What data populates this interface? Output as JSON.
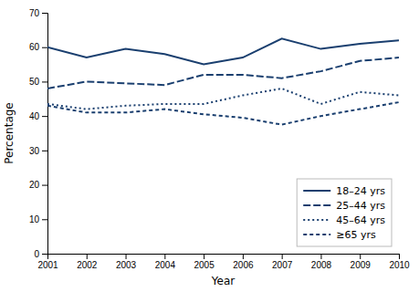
{
  "chart_data": {
    "type": "line",
    "x": [
      2001,
      2002,
      2003,
      2004,
      2005,
      2006,
      2007,
      2008,
      2009,
      2010
    ],
    "xlabel": "Year",
    "ylabel": "Percentage",
    "xlim": [
      2001,
      2010
    ],
    "xticks": [
      2001,
      2002,
      2003,
      2004,
      2005,
      2006,
      2007,
      2008,
      2009,
      2010
    ],
    "ylim": [
      0,
      70
    ],
    "yticks": [
      0,
      10,
      20,
      30,
      40,
      50,
      60,
      70
    ],
    "grid": false,
    "legend": "lower right",
    "series": [
      {
        "name": "18–24 yrs",
        "color": "#1a3f6f",
        "line_style": "solid",
        "values": [
          60,
          57,
          59.5,
          58,
          55,
          57,
          62.5,
          59.5,
          61,
          62
        ]
      },
      {
        "name": "25–44 yrs",
        "color": "#1a3f6f",
        "line_style": "longdash",
        "values": [
          48,
          50,
          49.5,
          49,
          52,
          52,
          51,
          53,
          56,
          57
        ]
      },
      {
        "name": "45–64 yrs",
        "color": "#1a3f6f",
        "line_style": "dot",
        "values": [
          43.5,
          42,
          43,
          43.5,
          43.5,
          46,
          48,
          43.5,
          47,
          46
        ]
      },
      {
        "name": "≥65 yrs",
        "color": "#1a3f6f",
        "line_style": "dash",
        "values": [
          43,
          41,
          41,
          42,
          40.5,
          39.5,
          37.5,
          40,
          42,
          44
        ]
      }
    ]
  }
}
